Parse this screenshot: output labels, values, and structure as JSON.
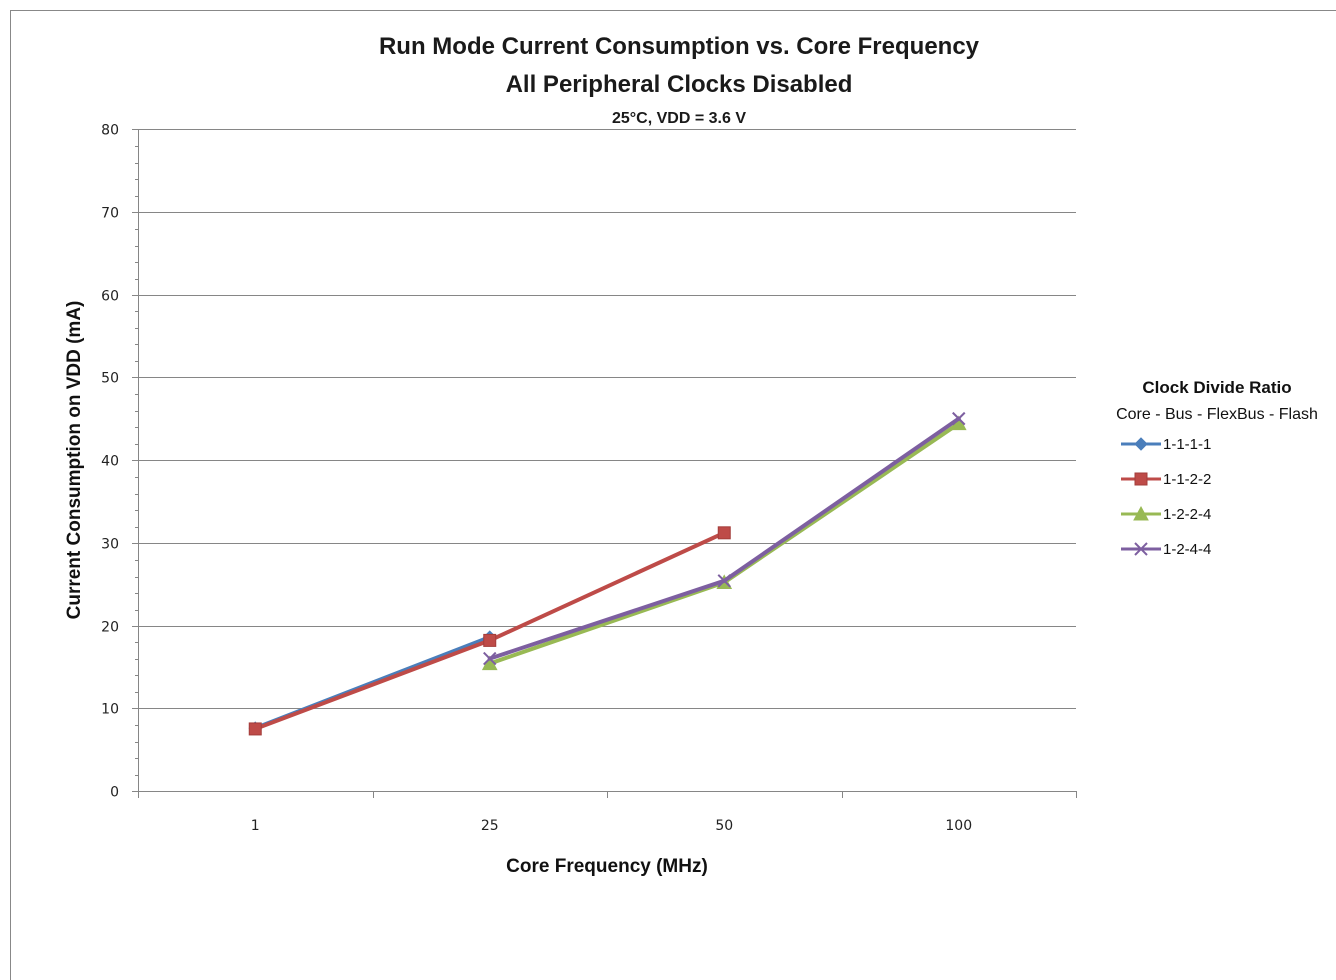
{
  "chart_data": {
    "type": "line",
    "title": "Run Mode Current Consumption  vs. Core Frequency",
    "subtitle": "All Peripheral Clocks Disabled",
    "subtitle2": "25°C, VDD = 3.6 V",
    "xlabel": "Core Frequency (MHz)",
    "ylabel": "Current Consumption on VDD (mA)",
    "categories": [
      "1",
      "25",
      "50",
      "100"
    ],
    "ylim": [
      0,
      80
    ],
    "yticks": [
      "0",
      "10",
      "20",
      "30",
      "40",
      "50",
      "60",
      "70",
      "80"
    ],
    "grid": true,
    "legend_placement": "right",
    "legend_title": "Clock Divide Ratio",
    "legend_subtitle": "Core - Bus - FlexBus - Flash",
    "series": [
      {
        "name": "1-1-1-1",
        "color": "#4a7ebb",
        "marker": "diamond",
        "values": [
          7.6,
          18.6,
          null,
          null
        ]
      },
      {
        "name": "1-1-2-2",
        "color": "#be4b48",
        "marker": "square",
        "values": [
          7.5,
          18.2,
          31.2,
          null
        ]
      },
      {
        "name": "1-2-2-4",
        "color": "#98b954",
        "marker": "triangle",
        "values": [
          null,
          15.4,
          25.2,
          44.4
        ]
      },
      {
        "name": "1-2-4-4",
        "color": "#7d5fa0",
        "marker": "x",
        "values": [
          null,
          16.0,
          25.4,
          45.0
        ]
      }
    ]
  }
}
